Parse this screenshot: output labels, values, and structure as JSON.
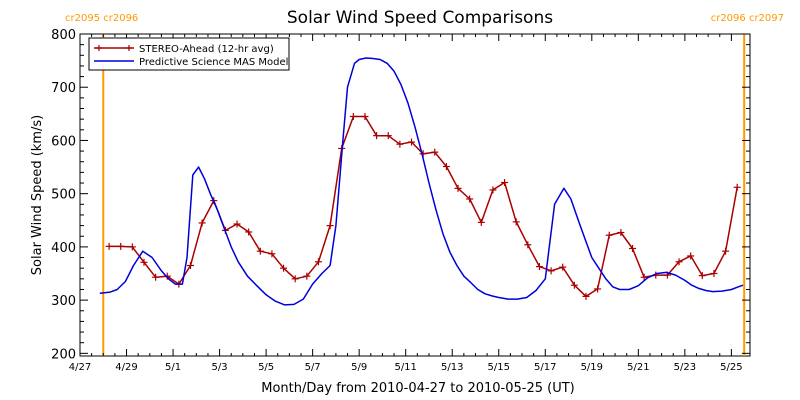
{
  "chart_data": {
    "type": "line",
    "title": "Solar Wind Speed Comparisons",
    "xlabel": "Month/Day from 2010-04-27 to 2010-05-25 (UT)",
    "ylabel": "Solar Wind Speed (km/s)",
    "xlim": [
      0,
      28.8
    ],
    "ylim": [
      195,
      800
    ],
    "grid": false,
    "legend_placement": "top-left",
    "xticks": [
      {
        "x": 0,
        "label": "4/27"
      },
      {
        "x": 2,
        "label": "4/29"
      },
      {
        "x": 4,
        "label": "5/1"
      },
      {
        "x": 6,
        "label": "5/3"
      },
      {
        "x": 8,
        "label": "5/5"
      },
      {
        "x": 10,
        "label": "5/7"
      },
      {
        "x": 12,
        "label": "5/9"
      },
      {
        "x": 14,
        "label": "5/11"
      },
      {
        "x": 16,
        "label": "5/13"
      },
      {
        "x": 18,
        "label": "5/15"
      },
      {
        "x": 20,
        "label": "5/17"
      },
      {
        "x": 22,
        "label": "5/19"
      },
      {
        "x": 24,
        "label": "5/21"
      },
      {
        "x": 26,
        "label": "5/23"
      },
      {
        "x": 28,
        "label": "5/25"
      }
    ],
    "yticks": [
      200,
      300,
      400,
      500,
      600,
      700,
      800
    ],
    "carrington_markers": [
      {
        "x": 1.0,
        "label": "cr2095 cr2096",
        "color": "#ff9900"
      },
      {
        "x": 28.55,
        "label": "cr2096 cr2097",
        "color": "#ff9900"
      }
    ],
    "series": [
      {
        "name": "STEREO-Ahead (12-hr avg)",
        "color": "#aa0000",
        "marker": "+",
        "x": [
          1.25,
          1.75,
          2.25,
          2.75,
          3.25,
          3.75,
          4.25,
          4.75,
          5.25,
          5.75,
          6.25,
          6.75,
          7.25,
          7.75,
          8.25,
          8.75,
          9.25,
          9.75,
          10.25,
          10.75,
          11.25,
          11.75,
          12.25,
          12.75,
          13.25,
          13.75,
          14.25,
          14.75,
          15.25,
          15.75,
          16.25,
          16.75,
          17.25,
          17.75,
          18.25,
          18.75,
          19.25,
          19.75,
          20.25,
          20.75,
          21.25,
          21.75,
          22.25,
          22.75,
          23.25,
          23.75,
          24.25,
          24.75,
          25.25,
          25.75,
          26.25,
          26.75,
          27.25,
          27.75,
          28.25
        ],
        "values": [
          401,
          401,
          400,
          371,
          343,
          345,
          330,
          365,
          445,
          487,
          431,
          443,
          428,
          392,
          387,
          360,
          340,
          345,
          372,
          440,
          585,
          645,
          645,
          609,
          609,
          593,
          597,
          575,
          578,
          551,
          510,
          490,
          446,
          507,
          521,
          447,
          404,
          363,
          355,
          362,
          328,
          307,
          321,
          422,
          427,
          397,
          343,
          347,
          347,
          372,
          383,
          346,
          350,
          392,
          512
        ]
      },
      {
        "name": "Predictive Science MAS Model",
        "color": "#0000dd",
        "x": [
          0.85,
          1.3,
          1.6,
          1.95,
          2.3,
          2.7,
          3.1,
          3.5,
          3.8,
          4.1,
          4.4,
          4.6,
          4.85,
          5.1,
          5.35,
          5.6,
          5.9,
          6.2,
          6.5,
          6.8,
          7.2,
          7.6,
          8.0,
          8.4,
          8.8,
          9.2,
          9.6,
          10.0,
          10.4,
          10.75,
          11.0,
          11.3,
          11.5,
          11.8,
          12.0,
          12.3,
          12.6,
          12.9,
          13.2,
          13.5,
          13.8,
          14.1,
          14.4,
          14.7,
          15.0,
          15.3,
          15.6,
          15.9,
          16.2,
          16.5,
          16.8,
          17.1,
          17.4,
          17.7,
          18.0,
          18.4,
          18.8,
          19.2,
          19.6,
          20.0,
          20.4,
          20.8,
          21.1,
          21.3,
          21.5,
          21.75,
          22.0,
          22.3,
          22.6,
          22.9,
          23.2,
          23.6,
          24.0,
          24.4,
          24.8,
          25.2,
          25.6,
          26.0,
          26.3,
          26.6,
          26.9,
          27.2,
          27.6,
          28.0,
          28.3,
          28.5
        ],
        "values": [
          313,
          315,
          320,
          335,
          365,
          392,
          380,
          355,
          340,
          330,
          330,
          380,
          535,
          550,
          528,
          500,
          470,
          435,
          400,
          372,
          345,
          327,
          310,
          298,
          291,
          292,
          302,
          330,
          350,
          365,
          440,
          600,
          700,
          745,
          752,
          755,
          754,
          752,
          745,
          730,
          705,
          670,
          625,
          575,
          520,
          470,
          425,
          390,
          365,
          345,
          333,
          320,
          312,
          308,
          305,
          302,
          302,
          305,
          318,
          340,
          480,
          510,
          490,
          465,
          440,
          410,
          380,
          360,
          340,
          325,
          320,
          320,
          327,
          342,
          350,
          352,
          347,
          337,
          328,
          322,
          318,
          316,
          317,
          320,
          325,
          328
        ]
      }
    ]
  }
}
